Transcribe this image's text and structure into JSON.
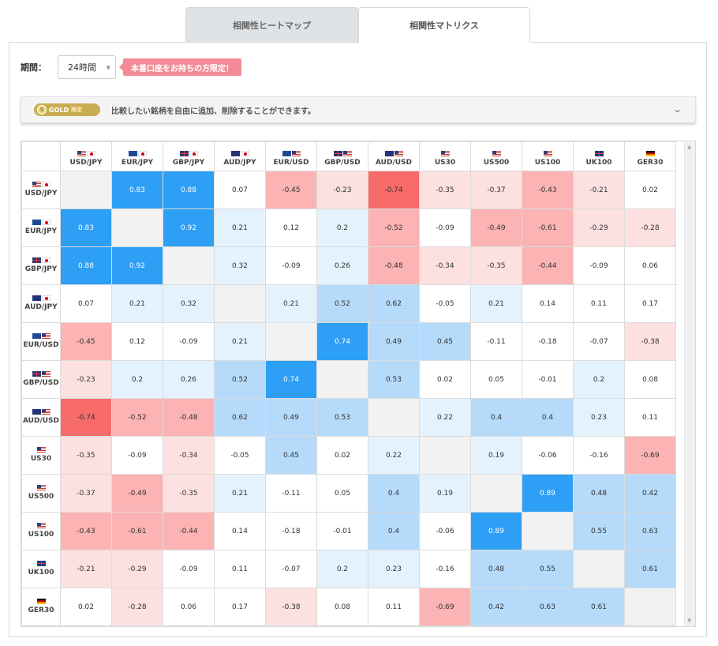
{
  "tabs": [
    {
      "label": "相関性ヒートマップ",
      "active": false
    },
    {
      "label": "相関性マトリクス",
      "active": true
    }
  ],
  "period": {
    "label": "期間：",
    "value": "24時間",
    "promo": "本番口座をお持ちの方限定！"
  },
  "gold_bar": {
    "badge": "GOLD",
    "badge_sub": "限定",
    "text": "比較したい銘柄を自由に追加、削除することができます。"
  },
  "colors": {
    "strong_pos": "#2d9ff5",
    "med_pos": "#b5dafa",
    "light_pos": "#e4f2fd",
    "strong_neg": "#f76b6b",
    "med_neg": "#fbb3b3",
    "light_neg": "#fde0e0",
    "diag": "#f2f2f2"
  },
  "matrix": {
    "symbols": [
      {
        "label": "USD/JPY",
        "flags": [
          "us",
          "jp"
        ],
        "sub": ""
      },
      {
        "label": "EUR/JPY",
        "flags": [
          "eu",
          "jp"
        ],
        "sub": ""
      },
      {
        "label": "GBP/JPY",
        "flags": [
          "uk",
          "jp"
        ],
        "sub": ""
      },
      {
        "label": "AUD/JPY",
        "flags": [
          "au",
          "jp"
        ],
        "sub": ""
      },
      {
        "label": "EUR/USD",
        "flags": [
          "eu",
          "us"
        ],
        "sub": ""
      },
      {
        "label": "GBP/USD",
        "flags": [
          "uk",
          "us"
        ],
        "sub": ""
      },
      {
        "label": "AUD/USD",
        "flags": [
          "au",
          "us"
        ],
        "sub": ""
      },
      {
        "label": "US30",
        "flags": [
          "us"
        ],
        "sub": ""
      },
      {
        "label": "US500",
        "flags": [
          "us"
        ],
        "sub": ""
      },
      {
        "label": "US100",
        "flags": [
          "us"
        ],
        "sub": ""
      },
      {
        "label": "UK100",
        "flags": [
          "uk"
        ],
        "sub": ""
      },
      {
        "label": "GER30",
        "flags": [
          "de"
        ],
        "sub": ""
      }
    ],
    "values": [
      [
        null,
        "0.83",
        "0.88",
        "0.07",
        "-0.45",
        "-0.23",
        "-0.74",
        "-0.35",
        "-0.37",
        "-0.43",
        "-0.21",
        "0.02"
      ],
      [
        "0.83",
        null,
        "0.92",
        "0.21",
        "0.12",
        "0.2",
        "-0.52",
        "-0.09",
        "-0.49",
        "-0.61",
        "-0.29",
        "-0.28"
      ],
      [
        "0.88",
        "0.92",
        null,
        "0.32",
        "-0.09",
        "0.26",
        "-0.48",
        "-0.34",
        "-0.35",
        "-0.44",
        "-0.09",
        "0.06"
      ],
      [
        "0.07",
        "0.21",
        "0.32",
        null,
        "0.21",
        "0.52",
        "0.62",
        "-0.05",
        "0.21",
        "0.14",
        "0.11",
        "0.17"
      ],
      [
        "-0.45",
        "0.12",
        "-0.09",
        "0.21",
        null,
        "0.74",
        "0.49",
        "0.45",
        "-0.11",
        "-0.18",
        "-0.07",
        "-0.38"
      ],
      [
        "-0.23",
        "0.2",
        "0.26",
        "0.52",
        "0.74",
        null,
        "0.53",
        "0.02",
        "0.05",
        "-0.01",
        "0.2",
        "0.08"
      ],
      [
        "-0.74",
        "-0.52",
        "-0.48",
        "0.62",
        "0.49",
        "0.53",
        null,
        "0.22",
        "0.4",
        "0.4",
        "0.23",
        "0.11"
      ],
      [
        "-0.35",
        "-0.09",
        "-0.34",
        "-0.05",
        "0.45",
        "0.02",
        "0.22",
        null,
        "0.19",
        "-0.06",
        "-0.16",
        "-0.69"
      ],
      [
        "-0.37",
        "-0.49",
        "-0.35",
        "0.21",
        "-0.11",
        "0.05",
        "0.4",
        "0.19",
        null,
        "0.89",
        "0.48",
        "0.42"
      ],
      [
        "-0.43",
        "-0.61",
        "-0.44",
        "0.14",
        "-0.18",
        "-0.01",
        "0.4",
        "-0.06",
        "0.89",
        null,
        "0.55",
        "0.63"
      ],
      [
        "-0.21",
        "-0.29",
        "-0.09",
        "0.11",
        "-0.07",
        "0.2",
        "0.23",
        "-0.16",
        "0.48",
        "0.55",
        null,
        "0.61"
      ],
      [
        "0.02",
        "-0.28",
        "0.06",
        "0.17",
        "-0.38",
        "0.08",
        "0.11",
        "-0.69",
        "0.42",
        "0.63",
        "0.61",
        null
      ]
    ]
  },
  "icons": {
    "chevron": "chevron-down-icon",
    "select_caret": "caret-down-icon",
    "coin": "gold-coin-icon"
  }
}
